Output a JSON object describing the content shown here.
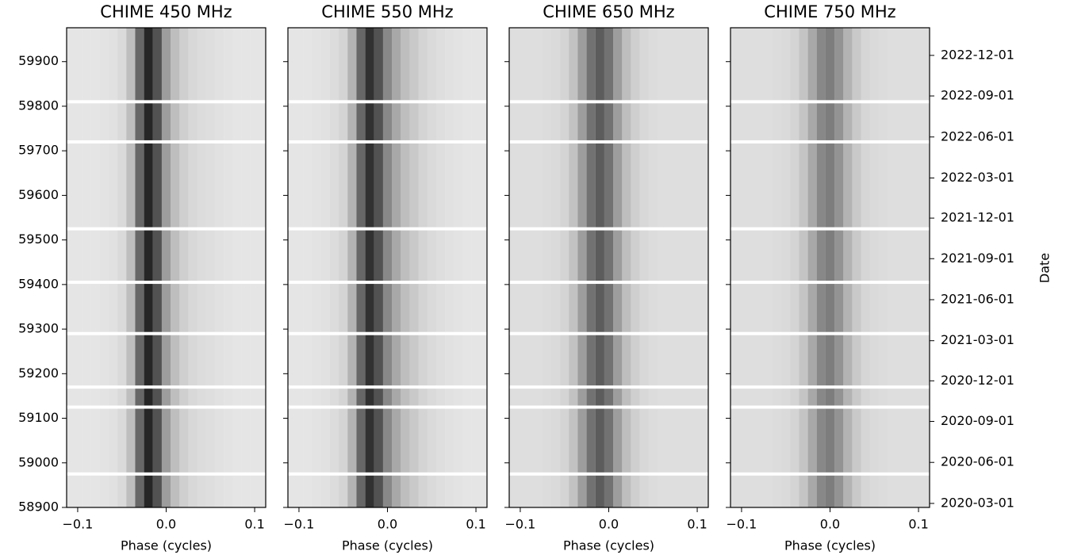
{
  "chart_data": [
    {
      "type": "heatmap",
      "title": "CHIME 450 MHz",
      "xlabel": "Phase (cycles)",
      "xlim": [
        -0.1125,
        0.1125
      ],
      "xticks": [
        {
          "value": -0.1,
          "label": "−0.1"
        },
        {
          "value": 0,
          "label": "0.0"
        },
        0.1
      ],
      "ylim": [
        58900,
        59976
      ],
      "yticks": [
        58900,
        59000,
        59100,
        59200,
        59300,
        59400,
        59500,
        59600,
        59700,
        59800,
        59900
      ],
      "x": [
        -0.11,
        -0.1,
        -0.09,
        -0.08,
        -0.07,
        -0.06,
        -0.05,
        -0.04,
        -0.03,
        -0.02,
        -0.01,
        0,
        0.01,
        0.02,
        0.03,
        0.04,
        0.05,
        0.06,
        0.07,
        0.08,
        0.09,
        0.1,
        0.11
      ],
      "values": [
        0.12,
        0.12,
        0.12,
        0.12,
        0.13,
        0.14,
        0.17,
        0.3,
        0.7,
        1.0,
        0.8,
        0.45,
        0.3,
        0.22,
        0.18,
        0.16,
        0.15,
        0.14,
        0.13,
        0.12,
        0.12,
        0.12,
        0.12
      ],
      "gaps": [
        58975,
        59125,
        59170,
        59290,
        59405,
        59525,
        59720,
        59810
      ]
    },
    {
      "type": "heatmap",
      "title": "CHIME 550 MHz",
      "xlabel": "Phase (cycles)",
      "xlim": [
        -0.1125,
        0.1125
      ],
      "xticks": [
        {
          "value": -0.1,
          "label": "−0.1"
        },
        {
          "value": 0,
          "label": "0.0"
        },
        0.1
      ],
      "ylim": [
        58900,
        59976
      ],
      "x": [
        -0.11,
        -0.1,
        -0.09,
        -0.08,
        -0.07,
        -0.06,
        -0.05,
        -0.04,
        -0.03,
        -0.02,
        -0.01,
        0,
        0.01,
        0.02,
        0.03,
        0.04,
        0.05,
        0.06,
        0.07,
        0.08,
        0.09,
        0.1,
        0.11
      ],
      "values": [
        0.12,
        0.12,
        0.12,
        0.13,
        0.14,
        0.16,
        0.2,
        0.35,
        0.7,
        0.95,
        0.8,
        0.55,
        0.4,
        0.3,
        0.25,
        0.2,
        0.17,
        0.15,
        0.14,
        0.13,
        0.12,
        0.12,
        0.12
      ],
      "gaps": [
        58975,
        59125,
        59170,
        59290,
        59405,
        59525,
        59720,
        59810
      ]
    },
    {
      "type": "heatmap",
      "title": "CHIME 650 MHz",
      "xlabel": "Phase (cycles)",
      "xlim": [
        -0.1125,
        0.1125
      ],
      "xticks": [
        {
          "value": -0.1,
          "label": "−0.1"
        },
        {
          "value": 0,
          "label": "0.0"
        },
        0.1
      ],
      "ylim": [
        58900,
        59976
      ],
      "x": [
        -0.11,
        -0.1,
        -0.09,
        -0.08,
        -0.07,
        -0.06,
        -0.05,
        -0.04,
        -0.03,
        -0.02,
        -0.01,
        0,
        0.01,
        0.02,
        0.03,
        0.04,
        0.05,
        0.06,
        0.07,
        0.08,
        0.09,
        0.1,
        0.11
      ],
      "values": [
        0.15,
        0.15,
        0.15,
        0.15,
        0.16,
        0.17,
        0.2,
        0.28,
        0.45,
        0.65,
        0.75,
        0.65,
        0.45,
        0.3,
        0.22,
        0.18,
        0.16,
        0.15,
        0.15,
        0.15,
        0.15,
        0.15,
        0.15
      ],
      "gaps": [
        58975,
        59125,
        59170,
        59290,
        59405,
        59525,
        59720,
        59810
      ]
    },
    {
      "type": "heatmap",
      "title": "CHIME 750 MHz",
      "xlabel": "Phase (cycles)",
      "xlim": [
        -0.1125,
        0.1125
      ],
      "xticks": [
        {
          "value": -0.1,
          "label": "−0.1"
        },
        {
          "value": 0,
          "label": "0.0"
        },
        0.1
      ],
      "ylim": [
        58900,
        59976
      ],
      "x": [
        -0.11,
        -0.1,
        -0.09,
        -0.08,
        -0.07,
        -0.06,
        -0.05,
        -0.04,
        -0.03,
        -0.02,
        -0.01,
        0,
        0.01,
        0.02,
        0.03,
        0.04,
        0.05,
        0.06,
        0.07,
        0.08,
        0.09,
        0.1,
        0.11
      ],
      "values": [
        0.15,
        0.15,
        0.15,
        0.15,
        0.15,
        0.16,
        0.17,
        0.2,
        0.27,
        0.4,
        0.55,
        0.6,
        0.5,
        0.35,
        0.25,
        0.19,
        0.17,
        0.16,
        0.15,
        0.15,
        0.15,
        0.15,
        0.15
      ],
      "gaps": [
        58975,
        59125,
        59170,
        59290,
        59405,
        59525,
        59720,
        59810
      ],
      "y2label": "Date",
      "y2lim": [
        58900,
        59976
      ],
      "y2ticks": [
        {
          "value": 58909,
          "label": "2020-03-01"
        },
        {
          "value": 59001,
          "label": "2020-06-01"
        },
        {
          "value": 59093,
          "label": "2020-09-01"
        },
        {
          "value": 59184,
          "label": "2020-12-01"
        },
        {
          "value": 59274,
          "label": "2021-03-01"
        },
        {
          "value": 59366,
          "label": "2021-06-01"
        },
        {
          "value": 59458,
          "label": "2021-09-01"
        },
        {
          "value": 59549,
          "label": "2021-12-01"
        },
        {
          "value": 59639,
          "label": "2022-03-01"
        },
        {
          "value": 59731,
          "label": "2022-06-01"
        },
        {
          "value": 59823,
          "label": "2022-09-01"
        },
        {
          "value": 59914,
          "label": "2022-12-01"
        }
      ]
    }
  ]
}
